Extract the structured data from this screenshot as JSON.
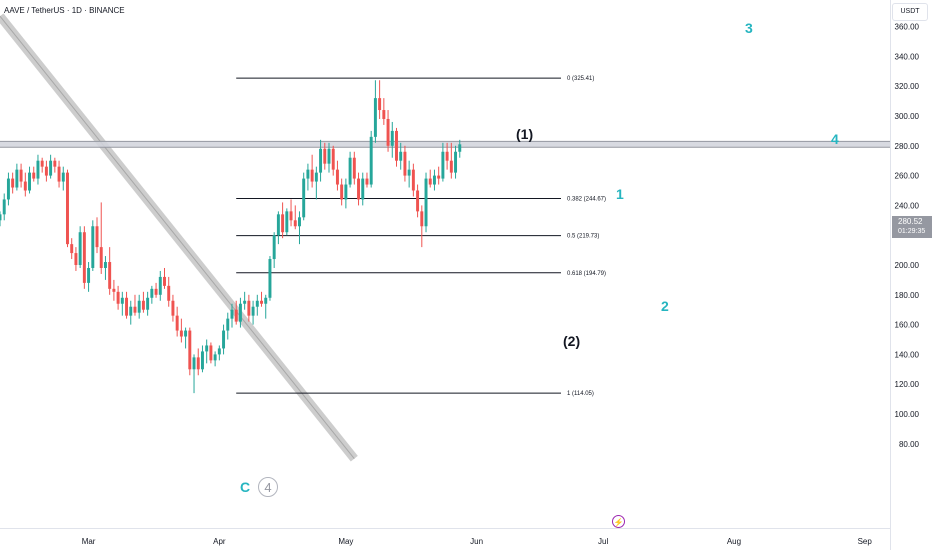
{
  "header": {
    "title": "AAVE / TetherUS · 1D · BINANCE"
  },
  "price_axis": {
    "currency": "USDT"
  },
  "last_price": {
    "value": "280.52",
    "countdown": "01:29:35"
  },
  "wave_labels": {
    "w1": "1",
    "w2": "2",
    "w3": "3",
    "w4": "4",
    "p1": "(1)",
    "p2": "(2)",
    "c": "C",
    "c4": "4"
  },
  "icons": {
    "alert": "lightning-icon"
  },
  "colors": {
    "up": "#26a69a",
    "down": "#ef5350",
    "wave_teal": "#26b5c0",
    "fib_line": "#131722",
    "channel": "#c8c8c8"
  },
  "chart_data": {
    "type": "candlestick",
    "title": "AAVE / TetherUS · 1D · BINANCE",
    "ylim": [
      75,
      415
    ],
    "y_ticks": [
      80,
      100,
      120,
      140,
      160,
      180,
      200,
      220,
      240,
      260,
      280,
      300,
      320,
      340,
      360,
      380,
      400
    ],
    "x_ticks": [
      {
        "label": "Mar",
        "day": 29
      },
      {
        "label": "Apr",
        "day": 60
      },
      {
        "label": "May",
        "day": 90
      },
      {
        "label": "Jun",
        "day": 121
      },
      {
        "label": "Jul",
        "day": 151
      },
      {
        "label": "Aug",
        "day": 182
      },
      {
        "label": "Sep",
        "day": 213
      }
    ],
    "x_domain_days": [
      8,
      219
    ],
    "fib_levels": [
      {
        "ratio": "0",
        "price": 325.41,
        "label": "0 (325.41)"
      },
      {
        "ratio": "0.382",
        "price": 244.67,
        "label": "0.382 (244.67)"
      },
      {
        "ratio": "0.5",
        "price": 219.73,
        "label": "0.5 (219.73)"
      },
      {
        "ratio": "0.618",
        "price": 194.79,
        "label": "0.618 (194.79)"
      },
      {
        "ratio": "1",
        "price": 114.05,
        "label": "1 (114.05)"
      }
    ],
    "fib_day_range": [
      64,
      141
    ],
    "resistance_band": [
      279,
      283
    ],
    "trendline": {
      "points": [
        [
          8,
          367
        ],
        [
          92,
          70
        ]
      ]
    },
    "candles": [
      [
        8,
        230,
        236,
        226,
        234
      ],
      [
        9,
        234,
        248,
        230,
        244
      ],
      [
        10,
        244,
        262,
        240,
        258
      ],
      [
        11,
        258,
        262,
        248,
        252
      ],
      [
        12,
        252,
        268,
        250,
        264
      ],
      [
        13,
        264,
        268,
        252,
        256
      ],
      [
        14,
        256,
        262,
        246,
        250
      ],
      [
        15,
        250,
        266,
        248,
        262
      ],
      [
        16,
        262,
        266,
        256,
        258
      ],
      [
        17,
        258,
        274,
        254,
        270
      ],
      [
        18,
        270,
        272,
        262,
        266
      ],
      [
        19,
        266,
        270,
        256,
        260
      ],
      [
        20,
        260,
        274,
        258,
        270
      ],
      [
        21,
        270,
        272,
        262,
        266
      ],
      [
        22,
        266,
        270,
        252,
        256
      ],
      [
        23,
        256,
        266,
        250,
        262
      ],
      [
        24,
        262,
        264,
        212,
        214
      ],
      [
        25,
        214,
        218,
        204,
        208
      ],
      [
        26,
        208,
        212,
        196,
        200
      ],
      [
        27,
        200,
        226,
        198,
        222
      ],
      [
        28,
        222,
        226,
        184,
        188
      ],
      [
        29,
        188,
        202,
        182,
        198
      ],
      [
        30,
        198,
        230,
        196,
        226
      ],
      [
        31,
        226,
        232,
        208,
        212
      ],
      [
        32,
        212,
        242,
        194,
        198
      ],
      [
        33,
        198,
        206,
        190,
        202
      ],
      [
        34,
        202,
        212,
        180,
        184
      ],
      [
        35,
        184,
        190,
        176,
        182
      ],
      [
        36,
        182,
        186,
        170,
        174
      ],
      [
        37,
        174,
        182,
        166,
        178
      ],
      [
        38,
        178,
        182,
        164,
        166
      ],
      [
        39,
        166,
        176,
        160,
        172
      ],
      [
        40,
        172,
        180,
        166,
        168
      ],
      [
        41,
        168,
        180,
        164,
        176
      ],
      [
        42,
        176,
        182,
        168,
        170
      ],
      [
        43,
        170,
        182,
        166,
        178
      ],
      [
        44,
        178,
        186,
        174,
        184
      ],
      [
        45,
        184,
        188,
        178,
        180
      ],
      [
        46,
        180,
        196,
        176,
        192
      ],
      [
        47,
        192,
        198,
        184,
        186
      ],
      [
        48,
        186,
        192,
        172,
        176
      ],
      [
        49,
        176,
        180,
        162,
        166
      ],
      [
        50,
        166,
        172,
        152,
        156
      ],
      [
        51,
        156,
        164,
        148,
        152
      ],
      [
        52,
        152,
        158,
        144,
        156
      ],
      [
        53,
        156,
        158,
        126,
        130
      ],
      [
        54,
        130,
        140,
        114,
        138
      ],
      [
        55,
        138,
        144,
        126,
        130
      ],
      [
        56,
        130,
        146,
        128,
        142
      ],
      [
        57,
        142,
        150,
        134,
        146
      ],
      [
        58,
        146,
        148,
        134,
        136
      ],
      [
        59,
        136,
        142,
        132,
        140
      ],
      [
        60,
        140,
        146,
        136,
        144
      ],
      [
        61,
        144,
        160,
        140,
        156
      ],
      [
        62,
        156,
        168,
        150,
        164
      ],
      [
        63,
        164,
        174,
        158,
        170
      ],
      [
        64,
        170,
        176,
        160,
        162
      ],
      [
        65,
        162,
        178,
        158,
        174
      ],
      [
        66,
        174,
        182,
        170,
        176
      ],
      [
        67,
        176,
        180,
        162,
        166
      ],
      [
        68,
        166,
        176,
        160,
        172
      ],
      [
        69,
        172,
        180,
        166,
        176
      ],
      [
        70,
        176,
        182,
        172,
        174
      ],
      [
        71,
        174,
        180,
        164,
        178
      ],
      [
        72,
        178,
        206,
        176,
        204
      ],
      [
        73,
        204,
        222,
        198,
        220
      ],
      [
        74,
        220,
        236,
        214,
        234
      ],
      [
        75,
        234,
        242,
        218,
        222
      ],
      [
        76,
        222,
        238,
        220,
        236
      ],
      [
        77,
        236,
        244,
        226,
        230
      ],
      [
        78,
        230,
        240,
        224,
        226
      ],
      [
        79,
        226,
        236,
        214,
        232
      ],
      [
        80,
        232,
        262,
        230,
        258
      ],
      [
        81,
        258,
        268,
        250,
        264
      ],
      [
        82,
        264,
        274,
        252,
        256
      ],
      [
        83,
        256,
        266,
        244,
        262
      ],
      [
        84,
        262,
        284,
        256,
        278
      ],
      [
        85,
        278,
        282,
        264,
        268
      ],
      [
        86,
        268,
        282,
        262,
        278
      ],
      [
        87,
        278,
        280,
        260,
        264
      ],
      [
        88,
        264,
        270,
        250,
        254
      ],
      [
        89,
        254,
        258,
        240,
        244
      ],
      [
        90,
        244,
        258,
        238,
        254
      ],
      [
        91,
        254,
        276,
        252,
        272
      ],
      [
        92,
        272,
        276,
        254,
        258
      ],
      [
        93,
        258,
        262,
        240,
        244
      ],
      [
        94,
        244,
        262,
        240,
        258
      ],
      [
        95,
        258,
        262,
        252,
        254
      ],
      [
        96,
        254,
        290,
        252,
        286
      ],
      [
        97,
        286,
        324,
        282,
        312
      ],
      [
        98,
        312,
        324,
        298,
        304
      ],
      [
        99,
        304,
        312,
        294,
        298
      ],
      [
        100,
        298,
        304,
        276,
        280
      ],
      [
        101,
        280,
        296,
        272,
        290
      ],
      [
        102,
        290,
        292,
        266,
        270
      ],
      [
        103,
        270,
        282,
        264,
        276
      ],
      [
        104,
        276,
        280,
        256,
        260
      ],
      [
        105,
        260,
        270,
        252,
        264
      ],
      [
        106,
        264,
        268,
        246,
        250
      ],
      [
        107,
        250,
        254,
        232,
        236
      ],
      [
        108,
        236,
        240,
        212,
        226
      ],
      [
        109,
        226,
        262,
        222,
        258
      ],
      [
        110,
        258,
        264,
        252,
        254
      ],
      [
        111,
        254,
        264,
        250,
        260
      ],
      [
        112,
        260,
        266,
        254,
        258
      ],
      [
        113,
        258,
        282,
        256,
        276
      ],
      [
        114,
        276,
        282,
        264,
        270
      ],
      [
        115,
        270,
        282,
        258,
        262
      ],
      [
        116,
        262,
        280,
        258,
        276
      ],
      [
        117,
        276,
        284,
        272,
        281
      ]
    ]
  }
}
